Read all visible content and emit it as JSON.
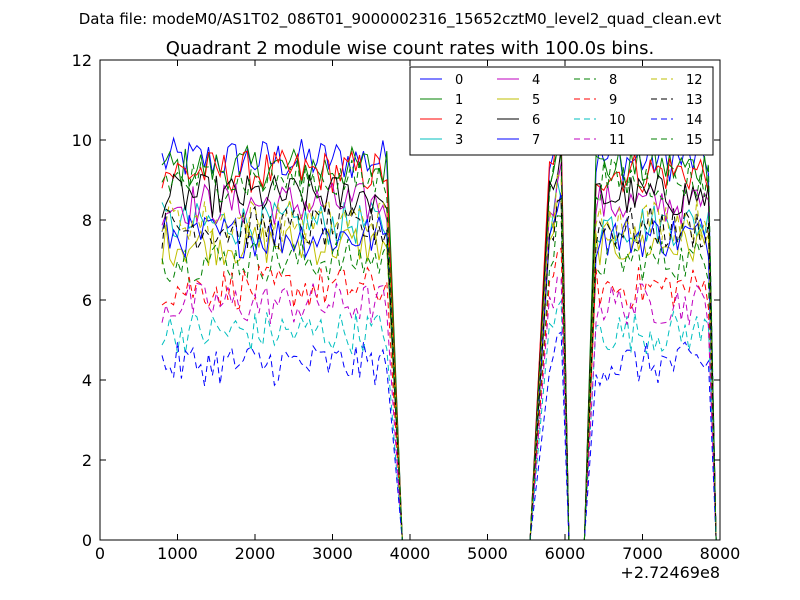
{
  "chart_data": {
    "type": "line",
    "suptitle": "Data file: modeM0/AS1T02_086T01_9000002316_15652cztM0_level2_quad_clean.evt",
    "title": "Quadrant 2 module wise count rates with 100.0s bins.",
    "xlabel": "",
    "ylabel": "",
    "x_offset_label": "+2.72469e8",
    "xlim": [
      0,
      8000
    ],
    "ylim": [
      0,
      12
    ],
    "xticks": [
      "0",
      "1000",
      "2000",
      "3000",
      "4000",
      "5000",
      "6000",
      "7000",
      "8000"
    ],
    "yticks": [
      "0",
      "2",
      "4",
      "6",
      "8",
      "10",
      "12"
    ],
    "legend_position": "top-right",
    "series": [
      {
        "name": "0",
        "color": "#0000ff",
        "dash": "solid",
        "level": 9.5
      },
      {
        "name": "1",
        "color": "#008000",
        "dash": "solid",
        "level": 9.3
      },
      {
        "name": "2",
        "color": "#ff0000",
        "dash": "solid",
        "level": 9.2
      },
      {
        "name": "3",
        "color": "#00bfbf",
        "dash": "solid",
        "level": 7.9
      },
      {
        "name": "4",
        "color": "#bf00bf",
        "dash": "solid",
        "level": 8.4
      },
      {
        "name": "5",
        "color": "#bfbf00",
        "dash": "solid",
        "level": 7.4
      },
      {
        "name": "6",
        "color": "#000000",
        "dash": "solid",
        "level": 8.6
      },
      {
        "name": "7",
        "color": "#0000ff",
        "dash": "solid",
        "level": 7.6
      },
      {
        "name": "8",
        "color": "#008000",
        "dash": "dashed",
        "level": 7.0
      },
      {
        "name": "9",
        "color": "#ff0000",
        "dash": "dashed",
        "level": 6.3
      },
      {
        "name": "10",
        "color": "#00bfbf",
        "dash": "dashed",
        "level": 5.2
      },
      {
        "name": "11",
        "color": "#bf00bf",
        "dash": "dashed",
        "level": 5.9
      },
      {
        "name": "12",
        "color": "#bfbf00",
        "dash": "dashed",
        "level": 8.0
      },
      {
        "name": "13",
        "color": "#000000",
        "dash": "dashed",
        "level": 7.8
      },
      {
        "name": "14",
        "color": "#0000ff",
        "dash": "dashed",
        "level": 4.4
      },
      {
        "name": "15",
        "color": "#008000",
        "dash": "dashed",
        "level": 9.0
      }
    ],
    "segments": [
      {
        "x_start": 800,
        "x_end": 3700,
        "drop_to": 3900
      },
      {
        "x_start": 5800,
        "x_end": 5950,
        "rise_from": 5550,
        "drop_to": 6050
      },
      {
        "x_start": 6400,
        "x_end": 7850,
        "rise_from": 6250,
        "drop_to": 7950
      }
    ]
  }
}
